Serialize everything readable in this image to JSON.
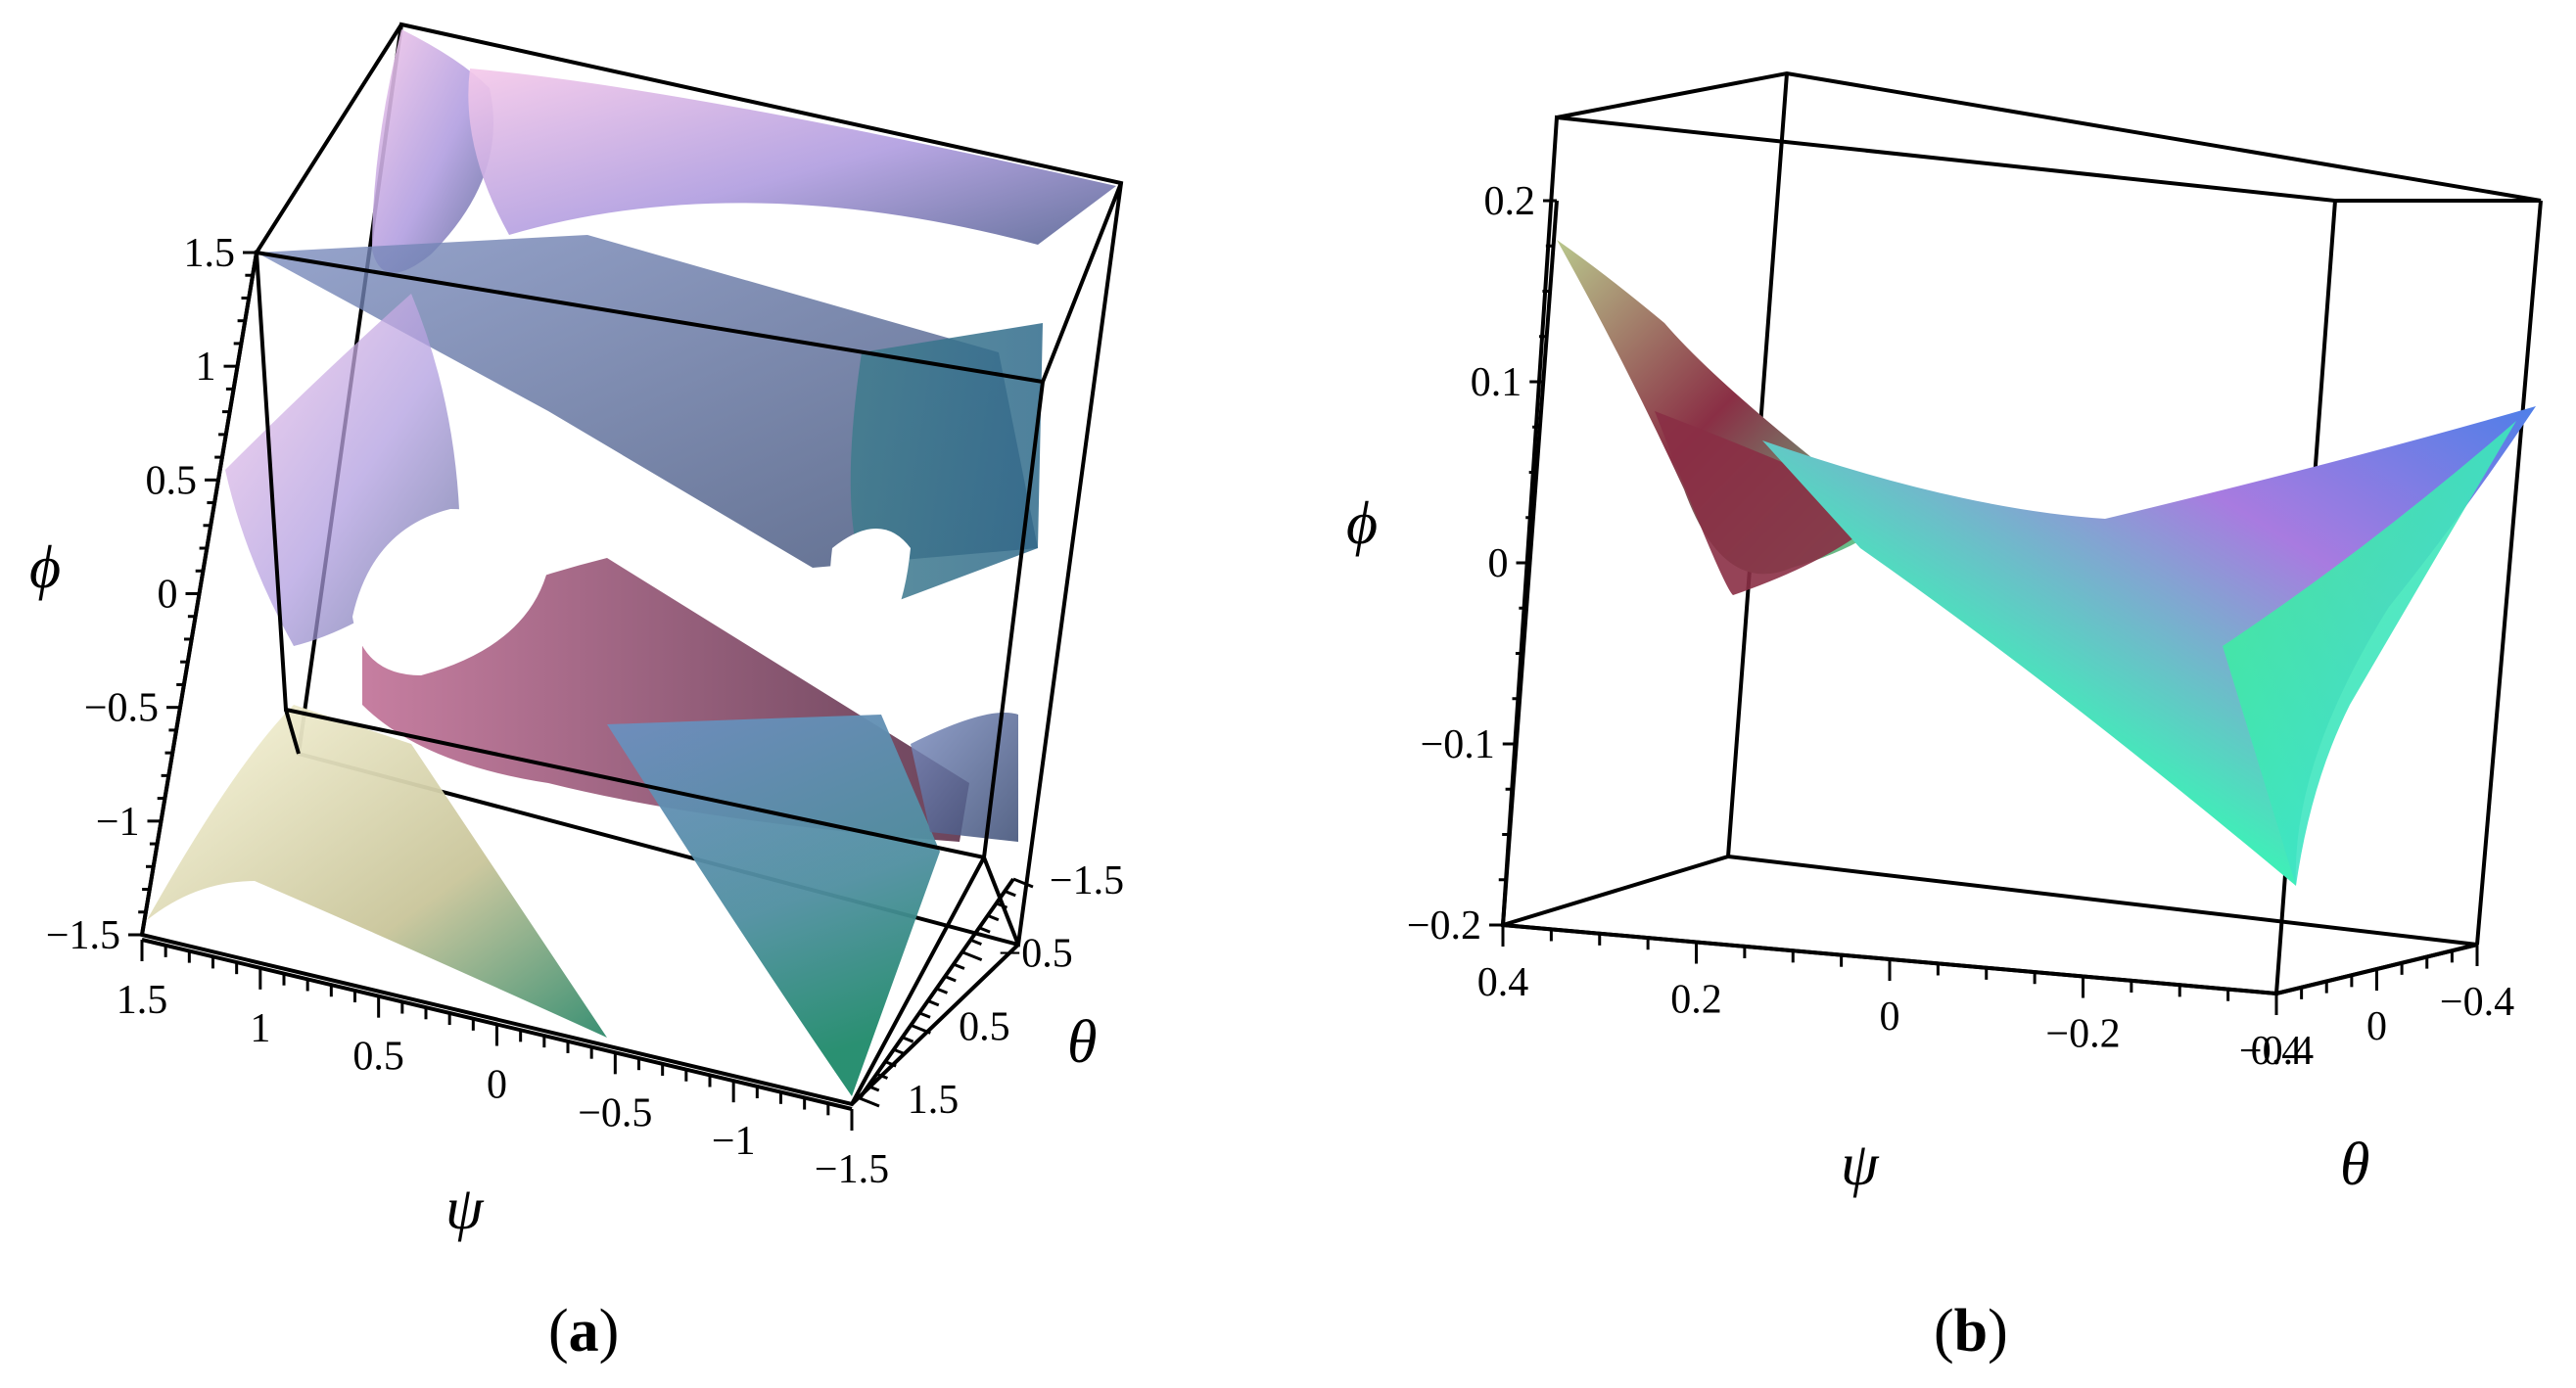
{
  "figure": {
    "panels": [
      {
        "caption_open": "(",
        "caption_letter": "a",
        "caption_close": ")"
      },
      {
        "caption_open": "(",
        "caption_letter": "b",
        "caption_close": ")"
      }
    ]
  },
  "chart_data": [
    {
      "type": "surface3d",
      "xlabel": "ψ",
      "ylabel": "θ",
      "zlabel": "ϕ",
      "x_ticks": [
        "1.5",
        "1",
        "0.5",
        "0",
        "−0.5",
        "−1",
        "−1.5"
      ],
      "y_ticks": [
        "−1.5",
        "−0.5",
        "0.5",
        "1.5"
      ],
      "z_ticks": [
        "1.5",
        "1",
        "0.5",
        "0",
        "−0.5",
        "−1",
        "−1.5"
      ],
      "xlim": [
        -1.5,
        1.5
      ],
      "ylim": [
        -1.5,
        1.5
      ],
      "zlim": [
        -1.5,
        1.5
      ],
      "box": true,
      "colors": {
        "pink": "#e9b6d8",
        "violet": "#8f86c9",
        "slate": "#4d5a86",
        "teal": "#3f7790",
        "maroon": "#7c3a55",
        "cream": "#efeecb",
        "green": "#2f8a6c"
      }
    },
    {
      "type": "surface3d",
      "xlabel": "ψ",
      "ylabel": "θ",
      "zlabel": "ϕ",
      "x_ticks": [
        "0.4",
        "0.2",
        "0",
        "−0.2",
        "−0.4"
      ],
      "y_ticks": [
        "0.4",
        "0",
        "−0.4"
      ],
      "z_ticks": [
        "0.2",
        "0.1",
        "0",
        "−0.1",
        "−0.2"
      ],
      "xlim": [
        -0.5,
        0.5
      ],
      "ylim": [
        -0.5,
        0.5
      ],
      "zlim": [
        -0.25,
        0.25
      ],
      "box": true,
      "colors": {
        "maroon": "#8a2f45",
        "olive": "#96aa6e",
        "green": "#33ef8e",
        "cyan": "#4ff0e8",
        "violet": "#a87be0",
        "blue": "#4f7fe8"
      }
    }
  ]
}
